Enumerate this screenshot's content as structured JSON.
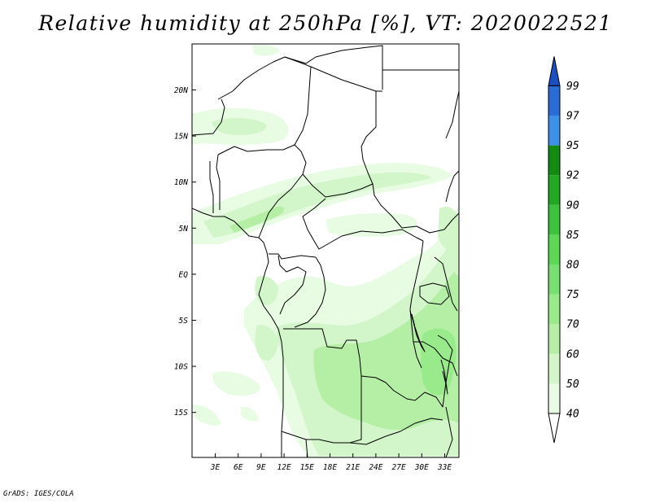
{
  "title": "Relative humidity at 250hPa [%], VT: 2020022521",
  "credit": "GrADS: IGES/COLA",
  "map": {
    "lon_labels": [
      "3E",
      "6E",
      "9E",
      "12E",
      "15E",
      "18E",
      "21E",
      "24E",
      "27E",
      "30E",
      "33E"
    ],
    "lat_labels": [
      "20N",
      "15N",
      "10N",
      "5N",
      "EQ",
      "5S",
      "10S",
      "15S"
    ]
  },
  "colorbar": {
    "levels": [
      "40",
      "50",
      "60",
      "70",
      "75",
      "80",
      "85",
      "90",
      "92",
      "95",
      "97",
      "99"
    ],
    "colors": [
      "#ffffff",
      "#e8fbe3",
      "#d2f6ca",
      "#b4efa5",
      "#98ea8a",
      "#78e070",
      "#5cd855",
      "#3cc23c",
      "#22a822",
      "#118c11",
      "#3d8fe8",
      "#2a6cd6",
      "#1a4fc0"
    ]
  }
}
